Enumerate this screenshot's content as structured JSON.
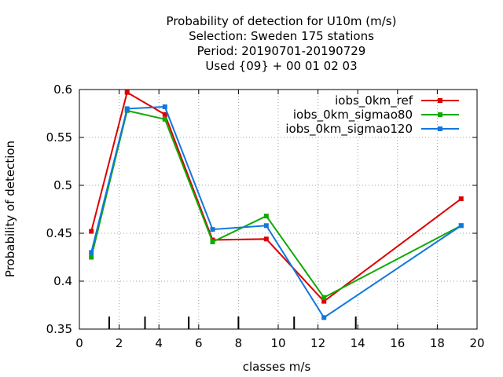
{
  "chart_data": {
    "type": "line",
    "title_lines": [
      "Probability of detection  for U10m (m/s)",
      "Selection: Sweden    175 stations",
      "Period: 20190701-20190729",
      "Used {09} + 00 01 02 03"
    ],
    "xlabel": "classes m/s",
    "ylabel": "Probability of detection",
    "xlim": [
      0,
      20
    ],
    "ylim": [
      0.35,
      0.6
    ],
    "x_ticks": [
      "0",
      "2",
      "4",
      "6",
      "8",
      "10",
      "12",
      "14",
      "16",
      "18",
      "20"
    ],
    "y_ticks": [
      "0.35",
      "0.4",
      "0.45",
      "0.5",
      "0.55",
      "0.6"
    ],
    "class_boundaries": [
      1.5,
      3.3,
      5.5,
      8.0,
      10.8,
      13.9
    ],
    "grid": true,
    "legend_position": "top-right",
    "series": [
      {
        "name": "iobs_0km_ref",
        "color": "#dd0000",
        "x": [
          0.6,
          2.4,
          4.3,
          6.7,
          9.4,
          12.3,
          19.2
        ],
        "y": [
          0.452,
          0.597,
          0.574,
          0.443,
          0.444,
          0.379,
          0.486
        ]
      },
      {
        "name": "iobs_0km_sigmao80",
        "color": "#11aa00",
        "x": [
          0.6,
          2.4,
          4.3,
          6.7,
          9.4,
          12.3,
          19.2
        ],
        "y": [
          0.425,
          0.578,
          0.569,
          0.441,
          0.468,
          0.383,
          0.458
        ]
      },
      {
        "name": "iobs_0km_sigmao120",
        "color": "#1177dd",
        "x": [
          0.6,
          2.4,
          4.3,
          6.7,
          9.4,
          12.3,
          19.2
        ],
        "y": [
          0.43,
          0.58,
          0.582,
          0.454,
          0.458,
          0.362,
          0.458
        ]
      }
    ]
  }
}
